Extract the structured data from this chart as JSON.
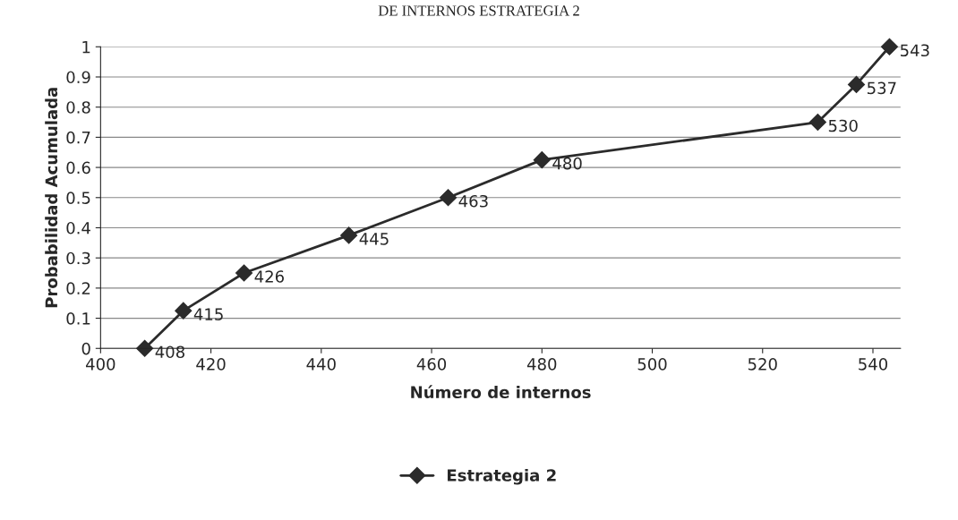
{
  "chart_data": {
    "type": "line",
    "title": "DE INTERNOS ESTRATEGIA 2",
    "xlabel": "Número de internos",
    "ylabel": "Probabilidad Acumulada",
    "x": [
      408,
      415,
      426,
      445,
      463,
      480,
      530,
      537,
      543
    ],
    "series": [
      {
        "name": "Estrategia 2",
        "color": "#2b2b2b",
        "values": [
          0,
          0.125,
          0.25,
          0.375,
          0.5,
          0.625,
          0.75,
          0.875,
          1
        ]
      }
    ],
    "annotations": [
      {
        "text": "408",
        "x": 408,
        "y": 0
      },
      {
        "text": "415",
        "x": 415,
        "y": 0.125
      },
      {
        "text": "426",
        "x": 426,
        "y": 0.25
      },
      {
        "text": "445",
        "x": 445,
        "y": 0.375
      },
      {
        "text": "463",
        "x": 463,
        "y": 0.5
      },
      {
        "text": "480",
        "x": 480,
        "y": 0.625
      },
      {
        "text": "530",
        "x": 530,
        "y": 0.75
      },
      {
        "text": "537",
        "x": 537,
        "y": 0.875
      },
      {
        "text": "543",
        "x": 543,
        "y": 1
      }
    ],
    "xlim": [
      400,
      545
    ],
    "xticks": [
      400,
      420,
      440,
      460,
      480,
      500,
      520,
      540
    ],
    "ylim": [
      0,
      1
    ],
    "yticks": [
      0,
      0.1,
      0.2,
      0.3,
      0.4,
      0.5,
      0.6,
      0.7,
      0.8,
      0.9,
      1
    ],
    "grid": "y",
    "legend": "bottom",
    "marker": "diamond",
    "line_style": "solid"
  }
}
